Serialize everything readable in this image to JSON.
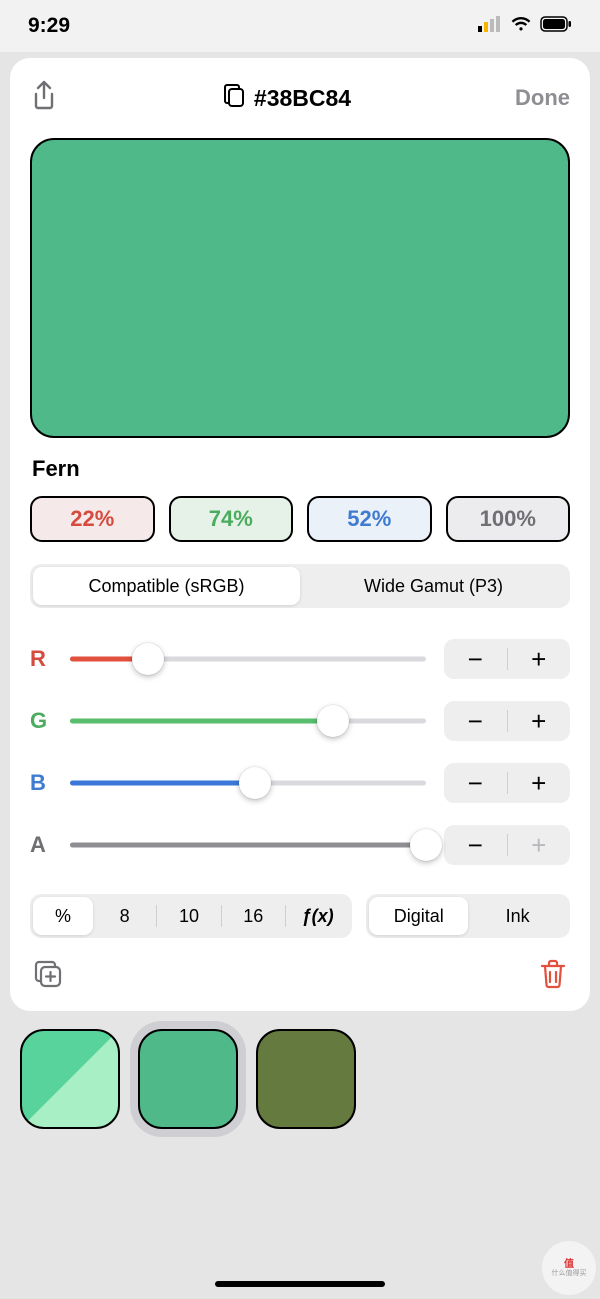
{
  "status": {
    "time": "9:29"
  },
  "header": {
    "hex": "#38BC84",
    "done_label": "Done"
  },
  "swatch": {
    "main_color": "#4fb98a",
    "name": "Fern"
  },
  "channels": {
    "r": {
      "label": "R",
      "pct_label": "22%",
      "value": 0.22,
      "text_color": "#d54b3f",
      "chip_bg": "#f5eae9",
      "track_color": "#e2503e"
    },
    "g": {
      "label": "G",
      "pct_label": "74%",
      "value": 0.74,
      "text_color": "#4bab5e",
      "chip_bg": "#e6f2e7",
      "track_color": "#59bd6e"
    },
    "b": {
      "label": "B",
      "pct_label": "52%",
      "value": 0.52,
      "text_color": "#3f7bd1",
      "chip_bg": "#eaf1f8",
      "track_color": "#3a77d8"
    },
    "a": {
      "label": "A",
      "pct_label": "100%",
      "value": 1.0,
      "text_color": "#6f6f74",
      "chip_bg": "#ececee",
      "track_color": "#8e8e93",
      "plus_disabled": true
    }
  },
  "gamut": {
    "options": [
      "Compatible (sRGB)",
      "Wide Gamut (P3)"
    ],
    "selected": 0
  },
  "format": {
    "items": [
      "%",
      "8",
      "10",
      "16",
      "ƒ(x)"
    ],
    "selected": 0
  },
  "medium": {
    "items": [
      "Digital",
      "Ink"
    ],
    "selected": 0
  },
  "palette": [
    {
      "color_a": "#57d39b",
      "color_b": "#a8efc6",
      "split": true
    },
    {
      "color": "#4fb98a",
      "selected": true
    },
    {
      "color": "#647a3f"
    }
  ],
  "icons": {
    "dup": "duplicate",
    "trash": "trash"
  }
}
